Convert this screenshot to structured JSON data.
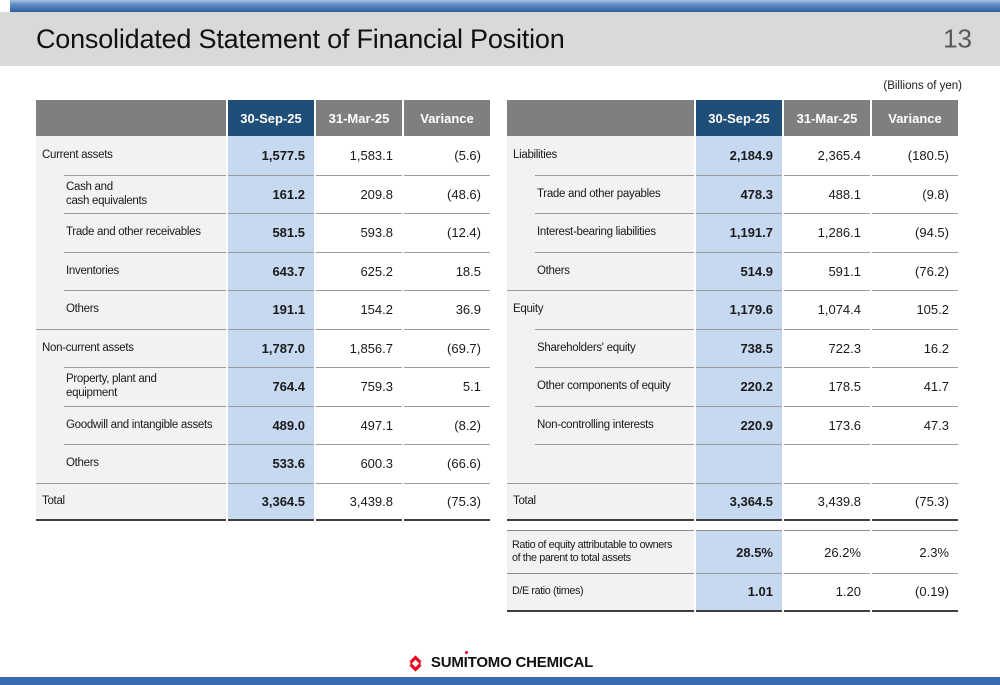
{
  "header": {
    "title": "Consolidated Statement of Financial Position",
    "page_number": "13",
    "units_note": "(Billions of yen)"
  },
  "columns": [
    "30-Sep-25",
    "31-Mar-25",
    "Variance"
  ],
  "assets_table": {
    "rows": [
      {
        "label": [
          "Current assets"
        ],
        "level": 0,
        "values": [
          "1,577.5",
          "1,583.1",
          "(5.6)"
        ]
      },
      {
        "label": [
          "Cash and",
          "cash equivalents"
        ],
        "level": 1,
        "values": [
          "161.2",
          "209.8",
          "(48.6)"
        ]
      },
      {
        "label": [
          "Trade and other receivables"
        ],
        "level": 1,
        "values": [
          "581.5",
          "593.8",
          "(12.4)"
        ]
      },
      {
        "label": [
          "Inventories"
        ],
        "level": 1,
        "values": [
          "643.7",
          "625.2",
          "18.5"
        ]
      },
      {
        "label": [
          "Others"
        ],
        "level": 1,
        "values": [
          "191.1",
          "154.2",
          "36.9"
        ]
      },
      {
        "label": [
          "Non-current assets"
        ],
        "level": 0,
        "values": [
          "1,787.0",
          "1,856.7",
          "(69.7)"
        ]
      },
      {
        "label": [
          "Property, plant and",
          "equipment"
        ],
        "level": 1,
        "values": [
          "764.4",
          "759.3",
          "5.1"
        ]
      },
      {
        "label": [
          "Goodwill and intangible assets"
        ],
        "level": 1,
        "values": [
          "489.0",
          "497.1",
          "(8.2)"
        ]
      },
      {
        "label": [
          "Others"
        ],
        "level": 1,
        "values": [
          "533.6",
          "600.3",
          "(66.6)"
        ]
      },
      {
        "label": [
          "Total"
        ],
        "level": 0,
        "total": true,
        "values": [
          "3,364.5",
          "3,439.8",
          "(75.3)"
        ]
      }
    ]
  },
  "liabilities_equity_table": {
    "rows": [
      {
        "label": [
          "Liabilities"
        ],
        "level": 0,
        "values": [
          "2,184.9",
          "2,365.4",
          "(180.5)"
        ]
      },
      {
        "label": [
          "Trade and other payables"
        ],
        "level": 1,
        "values": [
          "478.3",
          "488.1",
          "(9.8)"
        ]
      },
      {
        "label": [
          "Interest-bearing liabilities"
        ],
        "level": 1,
        "values": [
          "1,191.7",
          "1,286.1",
          "(94.5)"
        ]
      },
      {
        "label": [
          "Others"
        ],
        "level": 1,
        "values": [
          "514.9",
          "591.1",
          "(76.2)"
        ]
      },
      {
        "label": [
          "Equity"
        ],
        "level": 0,
        "values": [
          "1,179.6",
          "1,074.4",
          "105.2"
        ]
      },
      {
        "label": [
          "Shareholders' equity"
        ],
        "level": 1,
        "values": [
          "738.5",
          "722.3",
          "16.2"
        ]
      },
      {
        "label": [
          "Other components of equity"
        ],
        "level": 1,
        "values": [
          "220.2",
          "178.5",
          "41.7"
        ]
      },
      {
        "label": [
          "Non-controlling interests"
        ],
        "level": 1,
        "values": [
          "220.9",
          "173.6",
          "47.3"
        ]
      },
      {
        "label": [],
        "level": 1,
        "values": [
          "",
          "",
          ""
        ]
      },
      {
        "label": [
          "Total"
        ],
        "level": 0,
        "total": true,
        "values": [
          "3,364.5",
          "3,439.8",
          "(75.3)"
        ]
      }
    ]
  },
  "ratios_table": {
    "rows": [
      {
        "label": [
          "Ratio of equity attributable to owners",
          "of the parent to total assets"
        ],
        "level": 0,
        "values": [
          "28.5%",
          "26.2%",
          "2.3%"
        ]
      },
      {
        "label": [
          "D/E ratio (times)"
        ],
        "level": 0,
        "values": [
          "1.01",
          "1.20",
          "(0.19)"
        ]
      }
    ]
  },
  "footer": {
    "brand": "SUMITOMO CHEMICAL"
  },
  "colors": {
    "highlight_header": "#1f4e79",
    "header_gray": "#7f7f7f",
    "highlight_column": "#c6d9f0",
    "label_column": "#f2f2f2",
    "accent_bar_blue": "#3a6bb0",
    "brand_red": "#e8001c"
  }
}
